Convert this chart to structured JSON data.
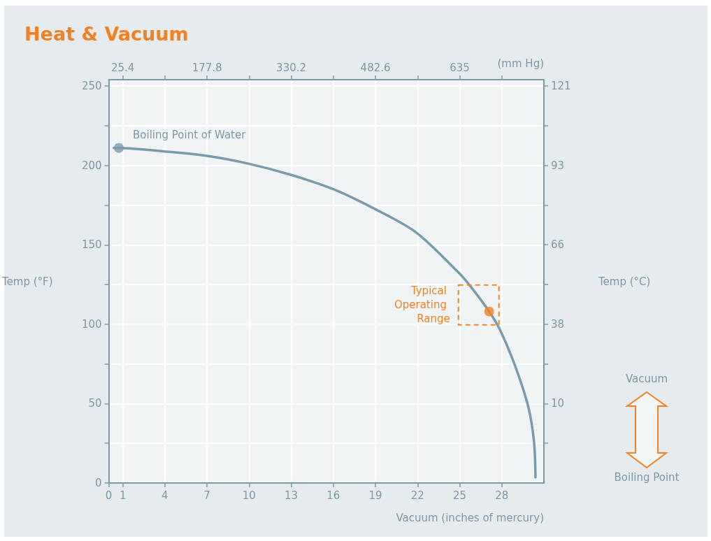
{
  "chart_data": {
    "type": "line",
    "title": "Heat & Vacuum",
    "xlabel": "Vacuum (inches of mercury)",
    "x2label": "(mm Hg)",
    "ylabel": "Temp (°F)",
    "y2label": "Temp (°C)",
    "xlim": [
      0,
      31
    ],
    "xticks": [
      0,
      1,
      4,
      7,
      10,
      13,
      16,
      19,
      22,
      25,
      28
    ],
    "x2lim": [
      0,
      787.4
    ],
    "x2ticks": [
      25.4,
      {
        "value": 101.6,
        "label": null
      },
      177.8,
      {
        "value": 254,
        "label": null
      },
      330.2,
      {
        "value": 406.4,
        "label": null
      },
      482.6,
      {
        "value": 558.8,
        "label": null
      },
      635,
      {
        "value": 711.2,
        "label": null
      }
    ],
    "ylim": [
      0,
      254
    ],
    "yticks": [
      0,
      {
        "value": 25,
        "label": null
      },
      50,
      {
        "value": 75,
        "label": null
      },
      100,
      {
        "value": 125,
        "label": null
      },
      150,
      {
        "value": 175,
        "label": null
      },
      200,
      {
        "value": 225,
        "label": null
      },
      250
    ],
    "y2lim": [
      -17.8,
      123.3
    ],
    "y2ticks": [
      {
        "value": -3.9,
        "label": null
      },
      10,
      {
        "value": 23.9,
        "label": null
      },
      {
        "value": 37.8,
        "label": "38"
      },
      {
        "value": 51.7,
        "label": null
      },
      {
        "value": 65.6,
        "label": "66"
      },
      {
        "value": 79.4,
        "label": null
      },
      {
        "value": 93.3,
        "label": "93"
      },
      {
        "value": 107.2,
        "label": null
      },
      {
        "value": 121.1,
        "label": "121"
      }
    ],
    "series": [
      {
        "color": "#7b9aaa",
        "x": [
          0.36,
          0.72,
          4,
          7,
          10,
          13,
          16,
          19,
          21.9,
          24.9,
          25.7,
          27.1,
          27.9,
          29,
          29.9,
          30.3,
          30.4
        ],
        "values": [
          211,
          211,
          208.8,
          206,
          201,
          194,
          185,
          172.4,
          157.8,
          132.7,
          124.6,
          108,
          96,
          72.5,
          47.5,
          25.5,
          3.5
        ]
      },
      {
        "type": "scatter",
        "color": "#7b9aaa",
        "x": [
          0.72
        ],
        "values": [
          211
        ]
      },
      {
        "type": "scatter",
        "color": "#f28123",
        "x": [
          27.1
        ],
        "values": [
          108
        ]
      }
    ],
    "annotations": [
      {
        "text": "Boiling Point of Water",
        "x": 0.72,
        "y": 211
      },
      "Typical Operating Range",
      "Vacuum",
      "Boiling Point"
    ],
    "grid": true,
    "line_style": "solid"
  }
}
